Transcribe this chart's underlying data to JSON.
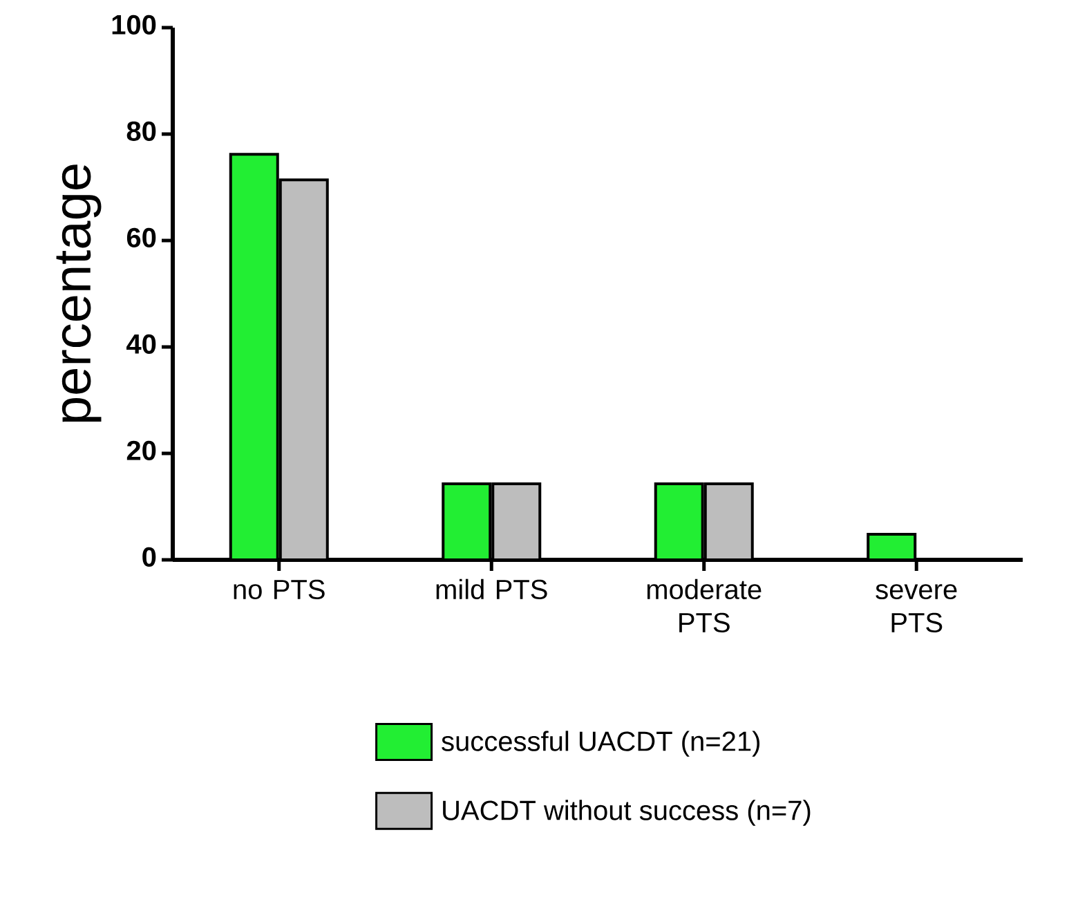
{
  "chart_data": {
    "type": "bar",
    "ylabel": "percentage",
    "categories": [
      "no PTS",
      "mild PTS",
      "moderate PTS",
      "severe PTS"
    ],
    "series": [
      {
        "name": "successful UACDT (n=21)",
        "color": "#22ee33",
        "values": [
          76.2,
          14.3,
          14.3,
          4.8
        ]
      },
      {
        "name": "UACDT without success (n=7)",
        "color": "#bdbdbd",
        "values": [
          71.4,
          14.3,
          14.3,
          0
        ]
      }
    ],
    "ylim": [
      0,
      100
    ],
    "yticks": [
      0,
      20,
      40,
      60,
      80,
      100
    ],
    "legend": "bottom"
  }
}
